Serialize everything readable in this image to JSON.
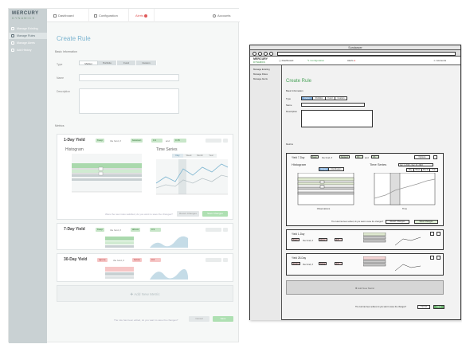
{
  "design": {
    "logo": {
      "name": "MERCURY",
      "sub": "DYNAMICS"
    },
    "sidebar": {
      "items": [
        {
          "label": "Manage Existing",
          "active": false
        },
        {
          "label": "Manage Rules",
          "active": true
        },
        {
          "label": "Manage Alerts",
          "active": false
        },
        {
          "label": "Add History",
          "active": false
        }
      ]
    },
    "nav": {
      "dashboard": "Dashboard",
      "configuration": "Configuration",
      "alerts": "Alerts",
      "accounts": "Accounts"
    },
    "page_title": "Create Rule",
    "basic_info": {
      "section": "Basic Information",
      "type_label": "Type",
      "types": [
        "Market",
        "Portfolio",
        "Fund",
        "Custom"
      ],
      "type_selected": 0,
      "name_label": "Name",
      "description_label": "Description"
    },
    "metrics_label": "Metrics",
    "cards": [
      {
        "title": "1-Day Yield",
        "action": "Keep",
        "mid": "the fund, if",
        "cond": "between",
        "v1": "0.2",
        "and": "and",
        "v2": "0.35",
        "tone": "g",
        "histogram": "Histogram",
        "timeseries": "Time Series",
        "ts_tabs": [
          "Day",
          "Week",
          "Month",
          "Year"
        ],
        "revert": "Revert Changes",
        "save": "Save Changes",
        "question": "Were the new rules satisfied, do you want to save the changes?"
      },
      {
        "title": "7-Day Yield",
        "action": "Keep",
        "mid": "the fund, if",
        "cond": "above",
        "v1": "0.9",
        "tone": "g"
      },
      {
        "title": "30-Day Yield",
        "action": "Ignore",
        "mid": "the fund, if",
        "cond": "below",
        "v1": "0.6",
        "tone": "r"
      }
    ],
    "add_metric": "Add New Metric",
    "footer": {
      "question": "The rule has been edited, do you want to save the changes?",
      "cancel": "Cancel",
      "save": "Save"
    }
  },
  "wireframe": {
    "window_title": "Sundancer",
    "logo": {
      "name": "MERCURY",
      "sub": "DYNAMICS"
    },
    "nav": {
      "dashboard": "Dashboard",
      "configuration": "Configuration",
      "alerts": "Alerts",
      "accounts": "Accounts"
    },
    "sidebar": [
      "Manage Existing",
      "Manage Rules",
      "Manage Alerts"
    ],
    "page_title": "Create Rule",
    "section": "Basic Information",
    "type_label": "Type",
    "types": [
      "Market",
      "Portfolio",
      "Fund",
      "Custom"
    ],
    "name_label": "Name",
    "description_label": "Description",
    "metrics_label": "Metrics",
    "card1": {
      "title": "Yield 7-Day",
      "action": "Keep",
      "mid": "the fund, if",
      "cond": "between",
      "v1": "0.4",
      "and": "and",
      "v2": "0.6",
      "options": "Options",
      "histogram": "Histogram",
      "hist_tabs": [
        "Range",
        "Distribution"
      ],
      "timeseries": "Time Series",
      "date_range": "Jan 1, 2016 - Dec 31, 2016",
      "ts_tabs": [
        "Day",
        "Week",
        "Month",
        "Year"
      ],
      "x_hist": "Observations",
      "x_ts": "Time",
      "y": "Yield",
      "question": "The rules has been edited, do you want to save the changes?",
      "revert": "Revert Changes",
      "save": "Save Changes"
    },
    "card2": {
      "title": "Yield 1-Day",
      "action": "Keep",
      "mid": "the fund, if",
      "cond": "above",
      "v1": "0.5"
    },
    "card3": {
      "title": "Yield 28-Day",
      "action": "Ignore",
      "mid": "the fund, if",
      "cond": "below",
      "v1": "0.2"
    },
    "add_metric": "Add New Metric",
    "footer": {
      "question": "The rule has been edited, do you want to save the changes?",
      "cancel": "Cancel",
      "save": "Save"
    }
  },
  "colors": {
    "accent_blue": "#7bb4d0",
    "green": "#aee0b2",
    "red": "#f6c6c6",
    "sidebar": "#c9d1d3"
  }
}
